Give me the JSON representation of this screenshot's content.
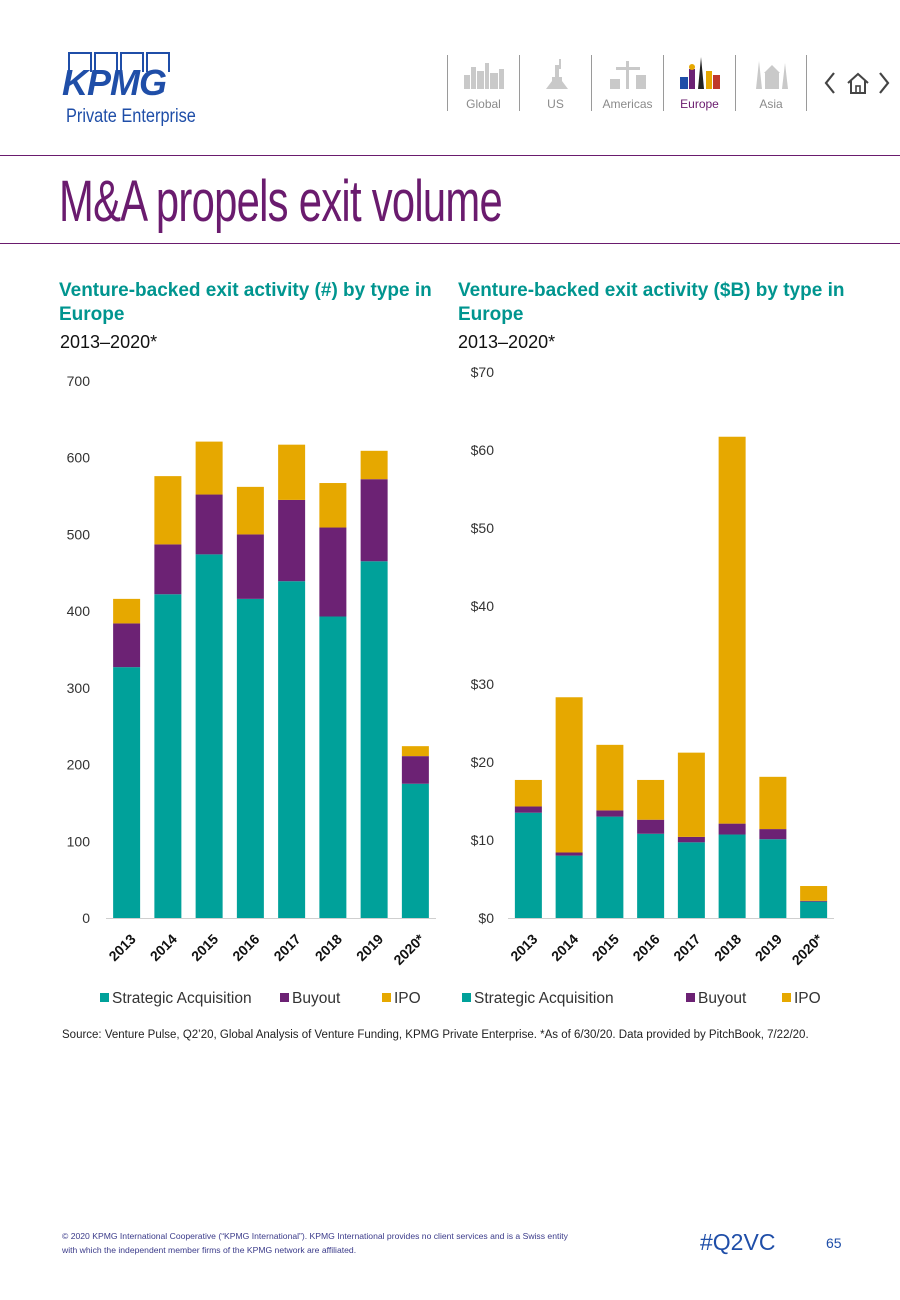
{
  "header": {
    "logo_text": "KPMG",
    "logo_sub": "Private Enterprise",
    "nav": [
      {
        "label": "Global",
        "active": false
      },
      {
        "label": "US",
        "active": false
      },
      {
        "label": "Americas",
        "active": false
      },
      {
        "label": "Europe",
        "active": true
      },
      {
        "label": "Asia",
        "active": false
      }
    ]
  },
  "page_title": "M&A propels exit volume",
  "colors": {
    "strategic": "#00A19A",
    "buyout": "#6C2274",
    "ipo": "#E6A800",
    "accent": "#6a1b6e"
  },
  "charts": [
    {
      "title": "Venture-backed exit activity (#) by type in Europe",
      "subtitle": "2013–2020*"
    },
    {
      "title": "Venture-backed exit activity ($B) by type in Europe",
      "subtitle": "2013–2020*"
    }
  ],
  "chart_data": [
    {
      "type": "bar",
      "stacked": true,
      "categories": [
        "2013",
        "2014",
        "2015",
        "2016",
        "2017",
        "2018",
        "2019",
        "2020*"
      ],
      "series": [
        {
          "name": "Strategic Acquisition",
          "values": [
            327,
            422,
            474,
            416,
            439,
            393,
            465,
            175
          ]
        },
        {
          "name": "Buyout",
          "values": [
            57,
            65,
            78,
            84,
            106,
            116,
            107,
            36
          ]
        },
        {
          "name": "IPO",
          "values": [
            32,
            89,
            69,
            62,
            72,
            58,
            37,
            13
          ]
        }
      ],
      "ylim": [
        0,
        700
      ],
      "yticks": [
        "0",
        "100",
        "200",
        "300",
        "400",
        "500",
        "600",
        "700"
      ],
      "legend": [
        "Strategic Acquisition",
        "Buyout",
        "IPO"
      ],
      "xlabel": "",
      "ylabel": ""
    },
    {
      "type": "bar",
      "stacked": true,
      "categories": [
        "2013",
        "2014",
        "2015",
        "2016",
        "2017",
        "2018",
        "2019",
        "2020*"
      ],
      "series": [
        {
          "name": "Strategic Acquisition",
          "values": [
            13.5,
            8.0,
            13.0,
            10.8,
            9.7,
            10.7,
            10.1,
            2.1
          ]
        },
        {
          "name": "Buyout",
          "values": [
            0.8,
            0.4,
            0.8,
            1.8,
            0.7,
            1.4,
            1.3,
            0.1
          ]
        },
        {
          "name": "IPO",
          "values": [
            3.4,
            19.9,
            8.4,
            5.1,
            10.8,
            49.6,
            6.7,
            1.9
          ]
        }
      ],
      "ylim": [
        0,
        70
      ],
      "yticks": [
        "$0",
        "$10",
        "$20",
        "$30",
        "$40",
        "$50",
        "$60",
        "$70"
      ],
      "legend": [
        "Strategic Acquisition",
        "Buyout",
        "IPO"
      ],
      "xlabel": "",
      "ylabel": ""
    }
  ],
  "source": "Source: Venture Pulse, Q2’20, Global Analysis of Venture Funding, KPMG Private Enterprise. *As of 6/30/20. Data provided by PitchBook, 7/22/20.",
  "footer": {
    "copyright": "© 2020 KPMG International Cooperative (“KPMG International”). KPMG International provides no client services and is a Swiss entity with which the independent member firms of the KPMG network are affiliated.",
    "hashtag": "#Q2VC",
    "page_number": "65"
  }
}
